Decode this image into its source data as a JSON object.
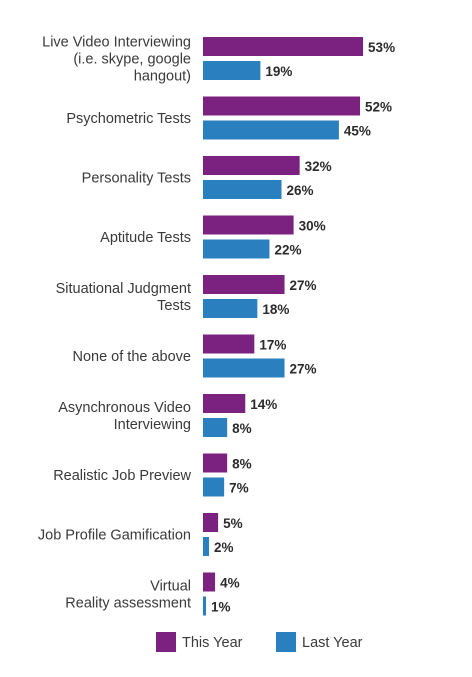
{
  "chart_data": {
    "type": "bar",
    "orientation": "horizontal",
    "categories": [
      [
        "Live Video Interviewing",
        "(i.e. skype, google",
        "hangout)"
      ],
      [
        "Psychometric Tests"
      ],
      [
        "Personality Tests"
      ],
      [
        "Aptitude Tests"
      ],
      [
        "Situational Judgment",
        "Tests"
      ],
      [
        "None of the above"
      ],
      [
        "Asynchronous Video",
        "Interviewing"
      ],
      [
        "Realistic Job Preview"
      ],
      [
        "Job Profile Gamification"
      ],
      [
        "Virtual",
        "Reality assessment"
      ]
    ],
    "series": [
      {
        "name": "This Year",
        "color": "#7b2281",
        "values": [
          53,
          52,
          32,
          30,
          27,
          17,
          14,
          8,
          5,
          4
        ],
        "labels": [
          "53%",
          "52%",
          "32%",
          "30%",
          "27%",
          "17%",
          "14%",
          "8%",
          "5%",
          "4%"
        ]
      },
      {
        "name": "Last Year",
        "color": "#2a7fbf",
        "values": [
          19,
          45,
          26,
          22,
          18,
          27,
          8,
          7,
          2,
          1
        ],
        "labels": [
          "19%",
          "45%",
          "26%",
          "22%",
          "18%",
          "27%",
          "8%",
          "7%",
          "2%",
          "1%"
        ]
      }
    ],
    "xlim": [
      0,
      53
    ],
    "grid": false,
    "legend_position": "bottom"
  }
}
